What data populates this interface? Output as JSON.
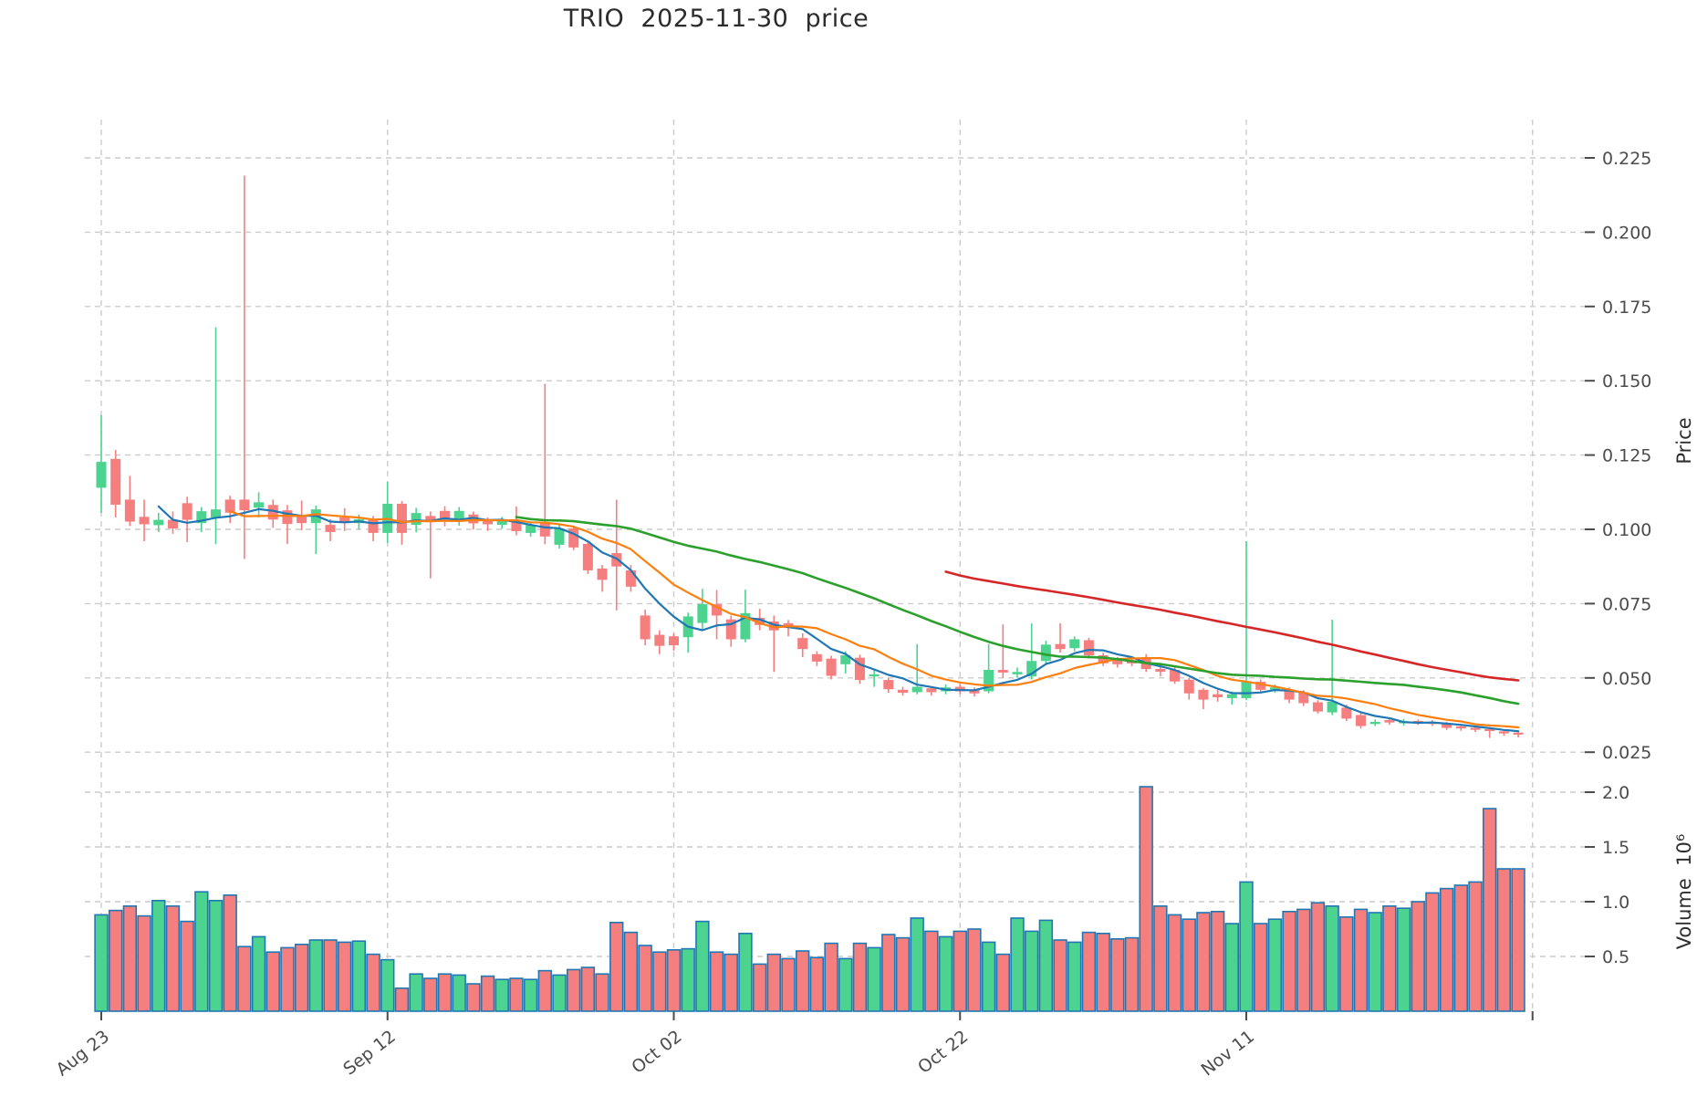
{
  "title": "TRIO  2025-11-30  price",
  "axes": {
    "price_label": "Price",
    "volume_label": "Volume  10⁶"
  },
  "style": {
    "up_color": "#4CD38F",
    "down_color": "#F57E7E",
    "volume_edge_color": "#2077B4",
    "grid_color": "#cccccc",
    "tick_text_color": "#4c4c4c",
    "ma_colors": [
      "#1f77b4",
      "#ff7f0e",
      "#2ca02c",
      "#d62728"
    ]
  },
  "chart_data": {
    "type": "candlestick",
    "title": "TRIO  2025-11-30  price",
    "subtype": "ohlc-with-volume-panel",
    "grid": "dashed",
    "legend_position": "none",
    "x_axis": {
      "tick_labels": [
        "Aug 23",
        "Sep 12",
        "Oct 02",
        "Oct 22",
        "Nov 11"
      ],
      "tick_days": [
        0,
        20,
        40,
        60,
        80
      ],
      "unlabeled_tick_day": 100,
      "label_rotation_deg": 38
    },
    "price_axis": {
      "label": "Price",
      "side": "right",
      "ticks": [
        0.225,
        0.2,
        0.175,
        0.15,
        0.125,
        0.1,
        0.075,
        0.05,
        0.025
      ],
      "range": [
        0.0217,
        0.238
      ]
    },
    "volume_axis": {
      "label": "Volume  10⁶",
      "side": "right",
      "ticks": [
        2.0,
        1.5,
        1.0,
        0.5
      ],
      "range": [
        0,
        2.19
      ],
      "unit": "millions"
    },
    "moving_averages": [
      {
        "window": 5,
        "color": "#1f77b4",
        "width": 2.2
      },
      {
        "window": 10,
        "color": "#ff7f0e",
        "width": 2.2
      },
      {
        "window": 30,
        "color": "#2ca02c",
        "width": 2.6
      },
      {
        "window": 60,
        "color": "#d62728",
        "width": 2.6
      }
    ],
    "columns": [
      "date",
      "open",
      "high",
      "low",
      "close",
      "volume_millions"
    ],
    "candles": [
      [
        "08-23",
        0.114,
        0.1384,
        0.1056,
        0.1227,
        0.88
      ],
      [
        "08-24",
        0.1237,
        0.1267,
        0.104,
        0.1083,
        0.92
      ],
      [
        "08-25",
        0.11,
        0.118,
        0.1011,
        0.1026,
        0.96
      ],
      [
        "08-26",
        0.1042,
        0.11,
        0.096,
        0.1017,
        0.87
      ],
      [
        "08-27",
        0.1014,
        0.1055,
        0.0991,
        0.1032,
        1.01
      ],
      [
        "08-28",
        0.1032,
        0.106,
        0.0985,
        0.1003,
        0.96
      ],
      [
        "08-29",
        0.1088,
        0.111,
        0.0957,
        0.1032,
        0.82
      ],
      [
        "08-30",
        0.1021,
        0.1075,
        0.0991,
        0.1061,
        1.09
      ],
      [
        "08-31",
        0.104,
        0.168,
        0.095,
        0.1067,
        1.01
      ],
      [
        "09-01",
        0.11,
        0.1113,
        0.1021,
        0.1056,
        1.06
      ],
      [
        "09-02",
        0.11,
        0.219,
        0.09,
        0.1064,
        0.59
      ],
      [
        "09-03",
        0.1073,
        0.1125,
        0.104,
        0.1091,
        0.68
      ],
      [
        "09-04",
        0.1082,
        0.11,
        0.1005,
        0.1033,
        0.54
      ],
      [
        "09-05",
        0.1064,
        0.1082,
        0.0951,
        0.1018,
        0.58
      ],
      [
        "09-06",
        0.1042,
        0.1097,
        0.0997,
        0.1021,
        0.61
      ],
      [
        "09-07",
        0.1021,
        0.108,
        0.0917,
        0.1067,
        0.65
      ],
      [
        "09-08",
        0.1015,
        0.1034,
        0.096,
        0.0991,
        0.65
      ],
      [
        "09-09",
        0.104,
        0.1071,
        0.0994,
        0.1021,
        0.63
      ],
      [
        "09-10",
        0.1021,
        0.105,
        0.1,
        0.1034,
        0.64
      ],
      [
        "09-11",
        0.1034,
        0.1045,
        0.096,
        0.0988,
        0.52
      ],
      [
        "09-12",
        0.0988,
        0.116,
        0.0954,
        0.1086,
        0.47
      ],
      [
        "09-13",
        0.1086,
        0.1095,
        0.0948,
        0.0988,
        0.21
      ],
      [
        "09-14",
        0.1015,
        0.1072,
        0.099,
        0.1055,
        0.34
      ],
      [
        "09-15",
        0.1045,
        0.106,
        0.0835,
        0.1024,
        0.3
      ],
      [
        "09-16",
        0.1062,
        0.1078,
        0.101,
        0.1032,
        0.34
      ],
      [
        "09-17",
        0.1032,
        0.1075,
        0.1012,
        0.1062,
        0.33
      ],
      [
        "09-18",
        0.105,
        0.106,
        0.1,
        0.102,
        0.25
      ],
      [
        "09-19",
        0.1032,
        0.104,
        0.0995,
        0.1017,
        0.32
      ],
      [
        "09-20",
        0.1015,
        0.1042,
        0.1002,
        0.103,
        0.29
      ],
      [
        "09-21",
        0.1032,
        0.1077,
        0.098,
        0.0994,
        0.3
      ],
      [
        "09-22",
        0.0988,
        0.1025,
        0.0975,
        0.1015,
        0.29
      ],
      [
        "09-23",
        0.1024,
        0.149,
        0.095,
        0.0976,
        0.37
      ],
      [
        "09-24",
        0.0948,
        0.1015,
        0.0935,
        0.1003,
        0.33
      ],
      [
        "09-25",
        0.1003,
        0.101,
        0.093,
        0.0939,
        0.38
      ],
      [
        "09-26",
        0.0951,
        0.096,
        0.085,
        0.0862,
        0.4
      ],
      [
        "09-27",
        0.0868,
        0.088,
        0.079,
        0.083,
        0.34
      ],
      [
        "09-28",
        0.092,
        0.11,
        0.0727,
        0.0875,
        0.81
      ],
      [
        "09-29",
        0.0862,
        0.088,
        0.079,
        0.0807,
        0.72
      ],
      [
        "09-30",
        0.071,
        0.073,
        0.061,
        0.063,
        0.6
      ],
      [
        "10-01",
        0.0645,
        0.066,
        0.058,
        0.0608,
        0.54
      ],
      [
        "10-02",
        0.064,
        0.065,
        0.0592,
        0.061,
        0.56
      ],
      [
        "10-03",
        0.0637,
        0.072,
        0.0585,
        0.0707,
        0.57
      ],
      [
        "10-04",
        0.0685,
        0.08,
        0.066,
        0.0748,
        0.82
      ],
      [
        "10-05",
        0.0748,
        0.0796,
        0.063,
        0.071,
        0.54
      ],
      [
        "10-06",
        0.0697,
        0.071,
        0.0605,
        0.063,
        0.52
      ],
      [
        "10-07",
        0.063,
        0.0797,
        0.062,
        0.0718,
        0.71
      ],
      [
        "10-08",
        0.0702,
        0.0733,
        0.066,
        0.0678,
        0.43
      ],
      [
        "10-09",
        0.069,
        0.071,
        0.052,
        0.066,
        0.52
      ],
      [
        "10-10",
        0.0684,
        0.0695,
        0.064,
        0.0668,
        0.48
      ],
      [
        "10-11",
        0.0634,
        0.065,
        0.057,
        0.0597,
        0.55
      ],
      [
        "10-12",
        0.058,
        0.059,
        0.054,
        0.0555,
        0.49
      ],
      [
        "10-13",
        0.0565,
        0.0575,
        0.0495,
        0.0507,
        0.62
      ],
      [
        "10-14",
        0.0546,
        0.059,
        0.0515,
        0.0576,
        0.48
      ],
      [
        "10-15",
        0.0568,
        0.0578,
        0.048,
        0.0493,
        0.62
      ],
      [
        "10-16",
        0.0505,
        0.053,
        0.047,
        0.0512,
        0.58
      ],
      [
        "10-17",
        0.0493,
        0.05,
        0.045,
        0.0462,
        0.7
      ],
      [
        "10-18",
        0.046,
        0.047,
        0.044,
        0.045,
        0.67
      ],
      [
        "10-19",
        0.0452,
        0.0614,
        0.0445,
        0.047,
        0.85
      ],
      [
        "10-20",
        0.0465,
        0.0472,
        0.044,
        0.0452,
        0.73
      ],
      [
        "10-21",
        0.0455,
        0.0478,
        0.0445,
        0.0468,
        0.68
      ],
      [
        "10-22",
        0.047,
        0.048,
        0.0445,
        0.0455,
        0.73
      ],
      [
        "10-23",
        0.046,
        0.0468,
        0.0438,
        0.0448,
        0.75
      ],
      [
        "10-24",
        0.0455,
        0.0614,
        0.0448,
        0.0527,
        0.63
      ],
      [
        "10-25",
        0.0527,
        0.068,
        0.05,
        0.0518,
        0.52
      ],
      [
        "10-26",
        0.0512,
        0.0535,
        0.05,
        0.052,
        0.85
      ],
      [
        "10-27",
        0.0505,
        0.0684,
        0.0495,
        0.0557,
        0.73
      ],
      [
        "10-28",
        0.0557,
        0.0625,
        0.0545,
        0.0612,
        0.83
      ],
      [
        "10-29",
        0.0614,
        0.0684,
        0.0585,
        0.0597,
        0.65
      ],
      [
        "10-30",
        0.06,
        0.064,
        0.059,
        0.063,
        0.63
      ],
      [
        "10-31",
        0.0627,
        0.0635,
        0.0565,
        0.0576,
        0.72
      ],
      [
        "11-01",
        0.0576,
        0.0585,
        0.054,
        0.0549,
        0.71
      ],
      [
        "11-02",
        0.0561,
        0.057,
        0.0535,
        0.0546,
        0.66
      ],
      [
        "11-03",
        0.056,
        0.057,
        0.054,
        0.0549,
        0.67
      ],
      [
        "11-04",
        0.057,
        0.058,
        0.052,
        0.053,
        2.05
      ],
      [
        "11-05",
        0.053,
        0.0545,
        0.0505,
        0.0521,
        0.96
      ],
      [
        "11-06",
        0.0527,
        0.0535,
        0.048,
        0.0488,
        0.88
      ],
      [
        "11-07",
        0.0494,
        0.05,
        0.0427,
        0.0448,
        0.84
      ],
      [
        "11-08",
        0.046,
        0.0465,
        0.0395,
        0.0427,
        0.9
      ],
      [
        "11-09",
        0.0445,
        0.046,
        0.042,
        0.0435,
        0.91
      ],
      [
        "11-10",
        0.0432,
        0.0455,
        0.041,
        0.0445,
        0.8
      ],
      [
        "11-11",
        0.0432,
        0.096,
        0.0425,
        0.0487,
        1.18
      ],
      [
        "11-12",
        0.0487,
        0.0495,
        0.045,
        0.046,
        0.8
      ],
      [
        "11-13",
        0.046,
        0.0478,
        0.045,
        0.0468,
        0.84
      ],
      [
        "11-14",
        0.046,
        0.0468,
        0.0415,
        0.0427,
        0.91
      ],
      [
        "11-15",
        0.0452,
        0.0458,
        0.0405,
        0.0415,
        0.93
      ],
      [
        "11-16",
        0.0418,
        0.0425,
        0.038,
        0.0387,
        0.99
      ],
      [
        "11-17",
        0.0384,
        0.0696,
        0.0375,
        0.042,
        0.96
      ],
      [
        "11-18",
        0.04,
        0.041,
        0.0355,
        0.0363,
        0.86
      ],
      [
        "11-19",
        0.0375,
        0.0382,
        0.033,
        0.0338,
        0.93
      ],
      [
        "11-20",
        0.0345,
        0.036,
        0.0338,
        0.0352,
        0.9
      ],
      [
        "11-21",
        0.0358,
        0.0365,
        0.0342,
        0.035,
        0.96
      ],
      [
        "11-22",
        0.0348,
        0.0362,
        0.034,
        0.0354,
        0.94
      ],
      [
        "11-23",
        0.0355,
        0.036,
        0.0342,
        0.035,
        1.0
      ],
      [
        "11-24",
        0.0352,
        0.0358,
        0.0338,
        0.0345,
        1.08
      ],
      [
        "11-25",
        0.0347,
        0.0352,
        0.0325,
        0.0332,
        1.12
      ],
      [
        "11-26",
        0.0337,
        0.0342,
        0.0322,
        0.033,
        1.15
      ],
      [
        "11-27",
        0.0332,
        0.0338,
        0.0318,
        0.0326,
        1.18
      ],
      [
        "11-28",
        0.0328,
        0.0335,
        0.0298,
        0.0322,
        1.85
      ],
      [
        "11-29",
        0.032,
        0.0326,
        0.0305,
        0.0315,
        1.3
      ],
      [
        "11-30",
        0.0316,
        0.0322,
        0.03,
        0.031,
        1.3
      ]
    ]
  }
}
